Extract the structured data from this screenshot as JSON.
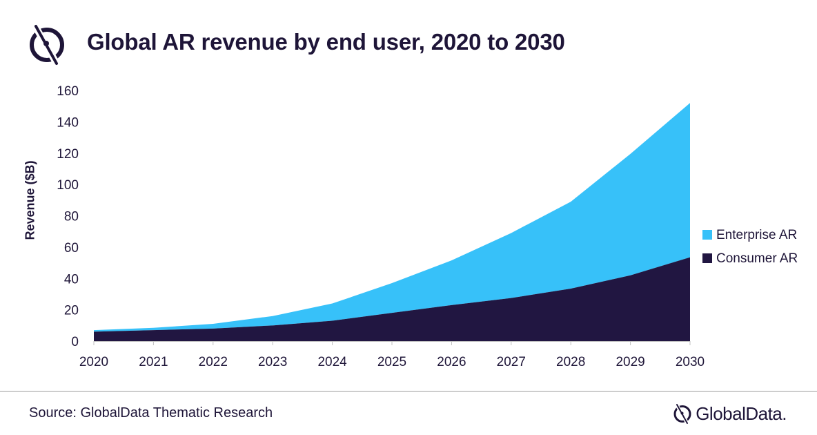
{
  "header": {
    "title": "Global AR revenue by end user, 2020 to 2030"
  },
  "colors": {
    "enterprise": "#37c1f9",
    "consumer": "#211641",
    "text": "#1e1538"
  },
  "icons": {
    "title_logo": "globaldata-mark-icon",
    "brand_logo": "globaldata-mark-icon"
  },
  "chart_data": {
    "type": "area",
    "stacked": true,
    "title": "Global AR revenue by end user, 2020 to 2030",
    "xlabel": "",
    "ylabel": "Revenue ($B)",
    "x": [
      "2020",
      "2021",
      "2022",
      "2023",
      "2024",
      "2025",
      "2026",
      "2027",
      "2028",
      "2029",
      "2030"
    ],
    "ylim": [
      0,
      160
    ],
    "yticks": [
      "0",
      "20",
      "40",
      "60",
      "80",
      "100",
      "120",
      "140",
      "160"
    ],
    "grid": false,
    "legend_position": "right",
    "series": [
      {
        "name": "Consumer AR",
        "values": [
          6,
          7,
          8,
          10,
          13,
          18,
          23,
          27.5,
          33.5,
          42,
          53.5
        ]
      },
      {
        "name": "Enterprise AR",
        "values": [
          1,
          1.5,
          3,
          6,
          11,
          19,
          28.5,
          41.5,
          55.5,
          77.5,
          98.5
        ]
      }
    ]
  },
  "footer": {
    "source": "Source: GlobalData Thematic Research",
    "brand": "GlobalData."
  }
}
